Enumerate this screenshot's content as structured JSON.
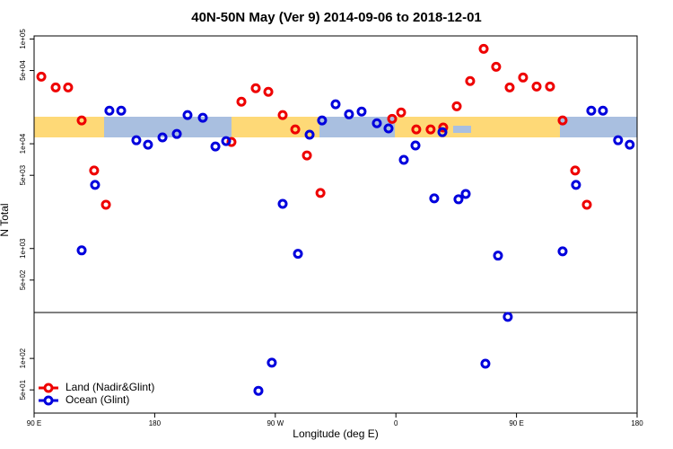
{
  "chart_data": [
    {
      "type": "scatter",
      "title": "40N-50N May (Ver 9)   2014-09-06 to 2018-12-01",
      "ylabel": "N Total",
      "log_scale": true,
      "xlim": [
        90,
        540
      ],
      "ylim": [
        245,
        107000
      ],
      "yticks": [
        {
          "value": 100000,
          "label": "1e+05"
        },
        {
          "value": 50000,
          "label": "5e+04"
        },
        {
          "value": 10000,
          "label": "1e+04"
        },
        {
          "value": 5000,
          "label": "5e+03"
        },
        {
          "value": 1000,
          "label": "1e+03"
        },
        {
          "value": 500,
          "label": "5e+02"
        }
      ],
      "series": [
        {
          "color": "#ee0000",
          "x": [
            95.4,
            106.1,
            115.4,
            125.5,
            134.8,
            143.6,
            237.3,
            244.7,
            255.4,
            264.8,
            275.5,
            284.9,
            293.6,
            303.7,
            357.2,
            363.9,
            375.2,
            385.9,
            395.3,
            405.4,
            415.4,
            425.5,
            434.8,
            444.9,
            454.9,
            465.0,
            475.0,
            484.4,
            493.8,
            502.5
          ],
          "values": [
            43700,
            34500,
            34500,
            16700,
            5550,
            2620,
            10400,
            25200,
            33900,
            31300,
            18800,
            13700,
            7740,
            3390,
            17300,
            19900,
            13700,
            13700,
            14300,
            22800,
            39700,
            80500,
            54300,
            34500,
            42900,
            35200,
            35200,
            16700,
            5550,
            2620
          ]
        },
        {
          "color": "#0000dd",
          "x": [
            125.5,
            135.5,
            146.2,
            155.0,
            166.3,
            175.0,
            185.8,
            196.5,
            204.5,
            215.9,
            225.3,
            233.3,
            275.5,
            286.9,
            295.6,
            304.9,
            315.0,
            325.0,
            334.4,
            345.8,
            354.5,
            365.9,
            374.6,
            388.6,
            394.7,
            406.7,
            412.1,
            436.2,
            484.4,
            494.4,
            505.8,
            514.5,
            525.8,
            534.5
          ],
          "values": [
            960,
            4050,
            20700,
            20700,
            10800,
            9800,
            11500,
            12400,
            18800,
            17700,
            9420,
            10600,
            2670,
            890,
            12200,
            16700,
            23800,
            19100,
            20300,
            15700,
            14000,
            7020,
            9620,
            3010,
            12900,
            2950,
            3320,
            855,
            940,
            4050,
            20700,
            20700,
            10800,
            9800
          ]
        }
      ]
    },
    {
      "type": "scatter",
      "xlabel": "Longitude (deg E)",
      "log_scale": true,
      "legend": "lower left",
      "xlim": [
        90,
        540
      ],
      "ylim": [
        30,
        275
      ],
      "xticks": [
        {
          "value": 90,
          "label": "90 E"
        },
        {
          "value": 180,
          "label": "180"
        },
        {
          "value": 270,
          "label": "90 W"
        },
        {
          "value": 360,
          "label": "0"
        },
        {
          "value": 450,
          "label": "90 E"
        },
        {
          "value": 540,
          "label": "180"
        }
      ],
      "yticks": [
        {
          "value": 100,
          "label": "1e+02"
        },
        {
          "value": 50,
          "label": "5e+01"
        }
      ],
      "series": [
        {
          "name": "Land (Nadir&Glint)",
          "color": "#ee0000",
          "x": [],
          "values": []
        },
        {
          "name": "Ocean (Glint)",
          "color": "#0000dd",
          "x": [
            257.4,
            267.4,
            426.8,
            443.5
          ],
          "values": [
            49,
            91,
            89,
            250
          ]
        }
      ]
    }
  ]
}
